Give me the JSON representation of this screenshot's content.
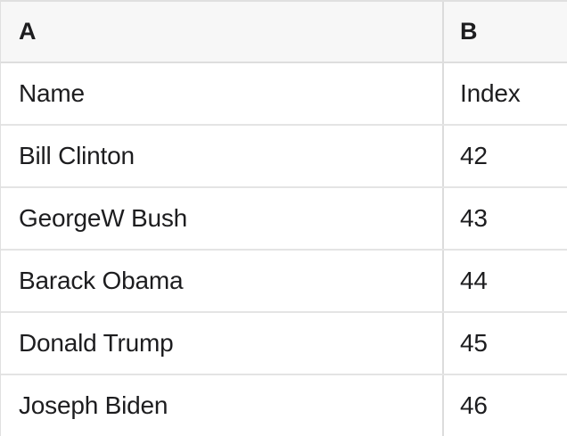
{
  "app": {
    "description": "spreadsheet-grid"
  },
  "colors": {
    "header_background": "#f7f7f7",
    "cell_background": "#ffffff",
    "grid_border": "#e0e0e0",
    "text": "#1d1d1f"
  },
  "table": {
    "column_headers": [
      {
        "letter": "A"
      },
      {
        "letter": "B"
      }
    ],
    "rows": [
      {
        "a": "Name",
        "b": "Index"
      },
      {
        "a": "Bill Clinton",
        "b": "42"
      },
      {
        "a": "GeorgeW Bush",
        "b": "43"
      },
      {
        "a": "Barack Obama",
        "b": "44"
      },
      {
        "a": "Donald Trump",
        "b": "45"
      },
      {
        "a": "Joseph Biden",
        "b": "46"
      }
    ]
  }
}
